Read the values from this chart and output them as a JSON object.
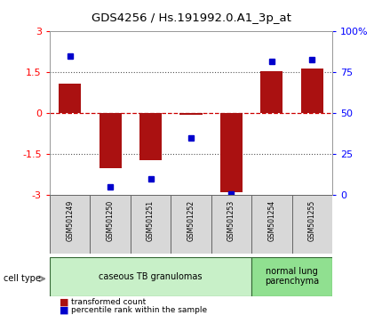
{
  "title": "GDS4256 / Hs.191992.0.A1_3p_at",
  "samples": [
    "GSM501249",
    "GSM501250",
    "GSM501251",
    "GSM501252",
    "GSM501253",
    "GSM501254",
    "GSM501255"
  ],
  "red_bars": [
    1.1,
    -2.0,
    -1.7,
    -0.05,
    -2.9,
    1.55,
    1.65
  ],
  "blue_dots": [
    85,
    5,
    10,
    35,
    1,
    82,
    83
  ],
  "groups": [
    {
      "label": "caseous TB granulomas",
      "samples": [
        0,
        1,
        2,
        3,
        4
      ],
      "color": "#c8f0c8"
    },
    {
      "label": "normal lung\nparenchyma",
      "samples": [
        5,
        6
      ],
      "color": "#90e090"
    }
  ],
  "ylim_left": [
    -3,
    3
  ],
  "ylim_right": [
    0,
    100
  ],
  "yticks_left": [
    -3,
    -1.5,
    0,
    1.5,
    3
  ],
  "ytick_labels_left": [
    "-3",
    "-1.5",
    "0",
    "1.5",
    "3"
  ],
  "yticks_right": [
    0,
    25,
    50,
    75,
    100
  ],
  "ytick_labels_right": [
    "0",
    "25",
    "50",
    "75",
    "100%"
  ],
  "bar_color": "#aa1111",
  "dot_color": "#0000cc",
  "hline_color": "#cc0000",
  "dotted_color": "#555555",
  "background_color": "#ffffff",
  "cell_type_label": "cell type",
  "legend_red_label": "transformed count",
  "legend_blue_label": "percentile rank within the sample"
}
